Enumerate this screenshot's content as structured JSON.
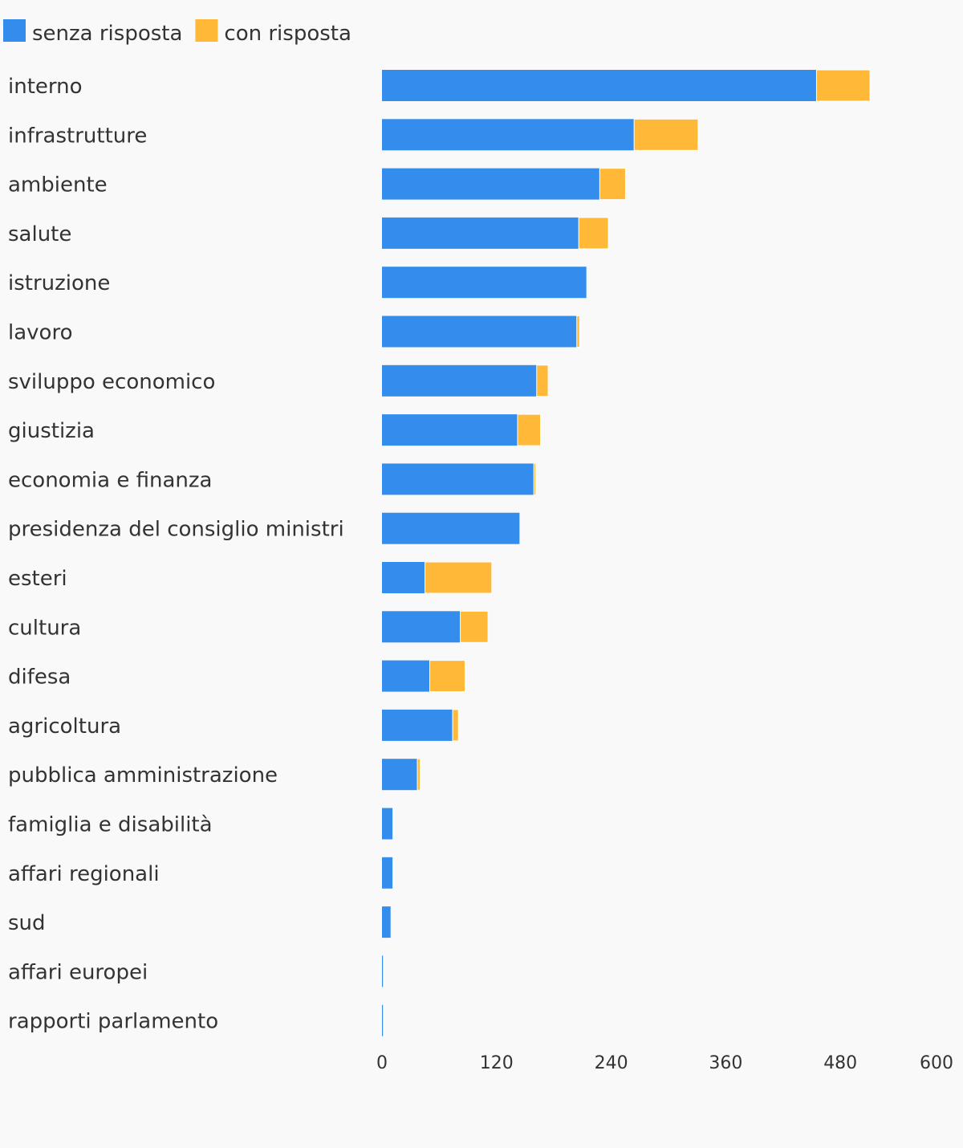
{
  "chart_data": {
    "type": "bar",
    "orientation": "horizontal",
    "stacked": true,
    "categories": [
      "interno",
      "infrastrutture",
      "ambiente",
      "salute",
      "istruzione",
      "lavoro",
      "sviluppo economico",
      "giustizia",
      "economia e finanza",
      "presidenza del consiglio ministri",
      "esteri",
      "cultura",
      "difesa",
      "agricoltura",
      "pubblica amministrazione",
      "famiglia e disabilità",
      "affari regionali",
      "sud",
      "affari europei",
      "rapporti parlamento"
    ],
    "series": [
      {
        "name": "senza risposta",
        "color": "#348ded",
        "values": [
          455,
          264,
          228,
          206,
          214,
          204,
          162,
          142,
          159,
          144,
          45,
          82,
          50,
          74,
          37,
          11,
          11,
          9,
          1,
          1
        ]
      },
      {
        "name": "con risposta",
        "color": "#ffb838",
        "values": [
          56,
          67,
          27,
          31,
          0,
          3,
          12,
          24,
          2,
          0,
          70,
          29,
          37,
          6,
          3,
          0,
          0,
          0,
          0,
          0
        ]
      }
    ],
    "xlim": [
      0,
      600
    ],
    "xticks": [
      "0",
      "120",
      "240",
      "360",
      "480",
      "600"
    ],
    "legend": "top-left",
    "grid": false,
    "title": "",
    "xlabel": "",
    "ylabel": ""
  }
}
